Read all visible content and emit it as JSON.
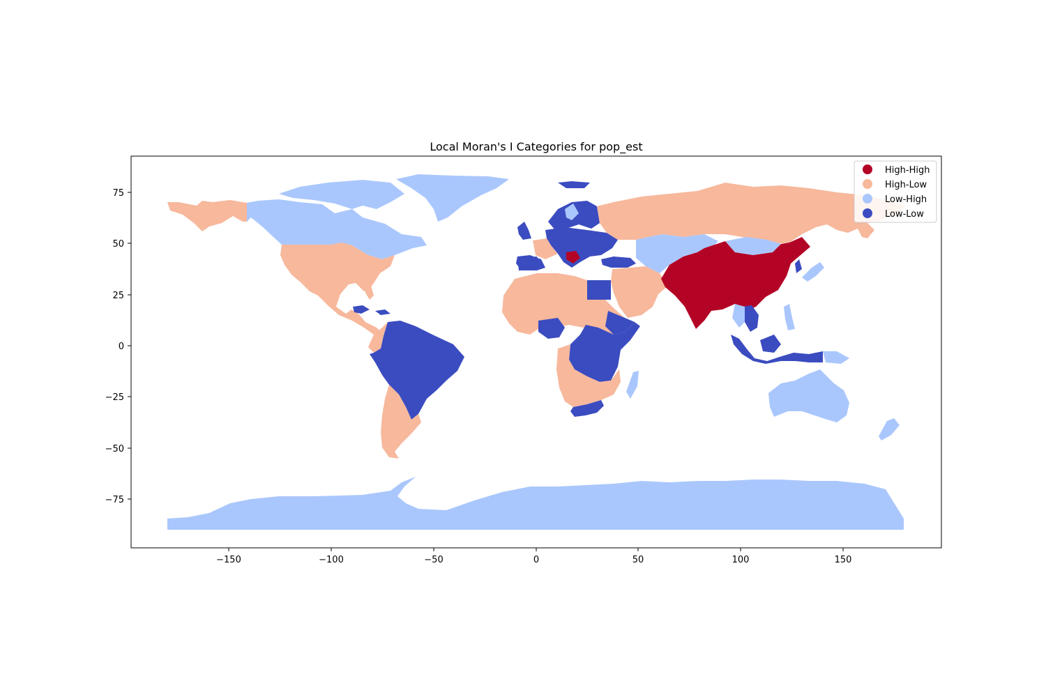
{
  "chart_data": {
    "type": "choropleth",
    "title": "Local Moran's I Categories for pop_est",
    "xlabel": "",
    "ylabel": "",
    "xlim": [
      -198,
      198
    ],
    "ylim": [
      -98,
      93
    ],
    "x_ticks": [
      -150,
      -100,
      -50,
      0,
      50,
      100,
      150
    ],
    "x_tick_labels": [
      "−150",
      "−100",
      "−50",
      "0",
      "50",
      "100",
      "150"
    ],
    "y_ticks": [
      75,
      50,
      25,
      0,
      -25,
      -50,
      -75
    ],
    "y_tick_labels": [
      "75",
      "50",
      "25",
      "0",
      "−25",
      "−50",
      "−75"
    ],
    "grid": false,
    "legend_position": "top-right",
    "categories": [
      {
        "name": "High-High",
        "color": "#b40426"
      },
      {
        "name": "High-Low",
        "color": "#f7b89c"
      },
      {
        "name": "Low-High",
        "color": "#aac7fd"
      },
      {
        "name": "Low-Low",
        "color": "#3b4cc0"
      }
    ],
    "regions": [
      {
        "region": "Alaska",
        "category": "High-Low"
      },
      {
        "region": "Canada",
        "category": "Low-High"
      },
      {
        "region": "Greenland",
        "category": "Low-High"
      },
      {
        "region": "United States",
        "category": "High-Low"
      },
      {
        "region": "Mexico and Central America",
        "category": "High-Low"
      },
      {
        "region": "Caribbean",
        "category": "Low-Low"
      },
      {
        "region": "Colombia",
        "category": "High-Low"
      },
      {
        "region": "Brazil and northern South America",
        "category": "Low-Low"
      },
      {
        "region": "Southern Cone",
        "category": "High-Low"
      },
      {
        "region": "Western Europe",
        "category": "Low-Low"
      },
      {
        "region": "Balkans",
        "category": "High-High"
      },
      {
        "region": "Scandinavia",
        "category": "Low-Low"
      },
      {
        "region": "Russia",
        "category": "High-Low"
      },
      {
        "region": "North Africa and Middle East",
        "category": "High-Low"
      },
      {
        "region": "Egypt",
        "category": "Low-Low"
      },
      {
        "region": "Central and East Africa",
        "category": "Low-Low"
      },
      {
        "region": "Southern Africa",
        "category": "High-Low"
      },
      {
        "region": "South Africa",
        "category": "Low-Low"
      },
      {
        "region": "Madagascar",
        "category": "Low-High"
      },
      {
        "region": "Central Asia",
        "category": "Low-High"
      },
      {
        "region": "Mongolia",
        "category": "Low-High"
      },
      {
        "region": "China and India",
        "category": "High-High"
      },
      {
        "region": "Vietnam and Laos",
        "category": "Low-Low"
      },
      {
        "region": "Indonesia",
        "category": "Low-Low"
      },
      {
        "region": "Japan and Philippines",
        "category": "Low-High"
      },
      {
        "region": "Australia",
        "category": "Low-High"
      },
      {
        "region": "New Zealand",
        "category": "Low-High"
      },
      {
        "region": "Antarctica",
        "category": "Low-High"
      }
    ]
  }
}
